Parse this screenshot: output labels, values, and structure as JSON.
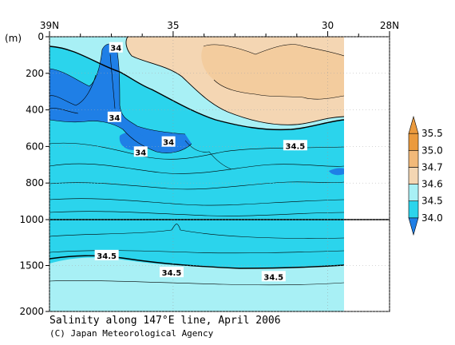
{
  "chart_data": {
    "type": "contour",
    "title": "Salinity along 147°E line, April 2006",
    "credit": "(C) Japan Meteorological Agency",
    "y_unit_label": "(m)",
    "x_ticks": [
      {
        "lat": 39,
        "label": "39N"
      },
      {
        "lat": 35,
        "label": "35"
      },
      {
        "lat": 30,
        "label": "30"
      },
      {
        "lat": 28,
        "label": "28N"
      }
    ],
    "x_minor_ticks": [
      38,
      37,
      36,
      34,
      33,
      32,
      31,
      29
    ],
    "x_range_lat": [
      39,
      28
    ],
    "data_extent_lat": [
      39,
      29.5
    ],
    "y_upper": {
      "range_m": [
        0,
        1000
      ],
      "ticks": [
        {
          "depth": 0,
          "label": "0"
        },
        {
          "depth": 200,
          "label": "200"
        },
        {
          "depth": 400,
          "label": "400"
        },
        {
          "depth": 600,
          "label": "600"
        },
        {
          "depth": 800,
          "label": "800"
        },
        {
          "depth": 1000,
          "label": "1000"
        }
      ]
    },
    "y_lower": {
      "range_m": [
        1000,
        2000
      ],
      "ticks": [
        {
          "depth": 1500,
          "label": "1500"
        },
        {
          "depth": 2000,
          "label": "2000"
        }
      ]
    },
    "colorbar": {
      "levels": [
        {
          "label": "34.0",
          "color": "#1f7fe6"
        },
        {
          "label": "34.5",
          "color": "#2bd4ec"
        },
        {
          "label": "34.6",
          "color": "#a8f0f5"
        },
        {
          "label": "34.7",
          "color": "#f4d6b3"
        },
        {
          "label": "35.0",
          "color": "#f2b979"
        },
        {
          "label": "35.5",
          "color": "#eb9a3d"
        }
      ]
    },
    "contour_labels": [
      {
        "text": "34",
        "lat": 36.85,
        "depth": 60
      },
      {
        "text": "34",
        "lat": 36.9,
        "depth": 440
      },
      {
        "text": "34",
        "lat": 35.15,
        "depth": 575
      },
      {
        "text": "34",
        "lat": 36.05,
        "depth": 630
      },
      {
        "text": "34.5",
        "lat": 31.05,
        "depth": 595
      },
      {
        "text": "34.5",
        "lat": 37.15,
        "depth": 1390
      },
      {
        "text": "34.5",
        "lat": 35.05,
        "depth": 1575
      },
      {
        "text": "34.5",
        "lat": 31.75,
        "depth": 1620
      }
    ]
  }
}
